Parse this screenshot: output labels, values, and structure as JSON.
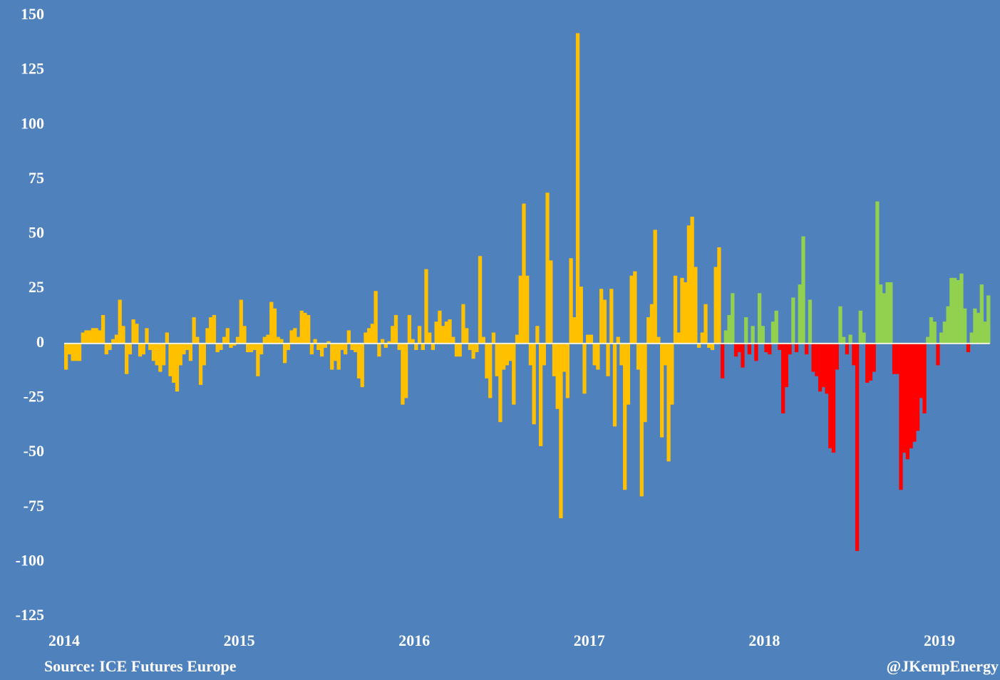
{
  "chart_data": {
    "type": "bar",
    "source": "Source: ICE Futures Europe",
    "credit": "@JKempEnergy",
    "categories": [
      "2014",
      null,
      null,
      null,
      null,
      null,
      null,
      null,
      null,
      null,
      null,
      null,
      null,
      null,
      null,
      null,
      null,
      null,
      null,
      null,
      null,
      null,
      null,
      null,
      null,
      null,
      null,
      null,
      null,
      null,
      null,
      null,
      null,
      null,
      null,
      null,
      null,
      null,
      null,
      null,
      null,
      null,
      null,
      null,
      null,
      null,
      null,
      null,
      null,
      null,
      null,
      null,
      "2015",
      null,
      null,
      null,
      null,
      null,
      null,
      null,
      null,
      null,
      null,
      null,
      null,
      null,
      null,
      null,
      null,
      null,
      null,
      null,
      null,
      null,
      null,
      null,
      null,
      null,
      null,
      null,
      null,
      null,
      null,
      null,
      null,
      null,
      null,
      null,
      null,
      null,
      null,
      null,
      null,
      null,
      null,
      null,
      null,
      null,
      null,
      null,
      null,
      null,
      null,
      null,
      "2016",
      null,
      null,
      null,
      null,
      null,
      null,
      null,
      null,
      null,
      null,
      null,
      null,
      null,
      null,
      null,
      null,
      null,
      null,
      null,
      null,
      null,
      null,
      null,
      null,
      null,
      null,
      null,
      null,
      null,
      null,
      null,
      null,
      null,
      null,
      null,
      null,
      null,
      null,
      null,
      null,
      null,
      null,
      null,
      null,
      null,
      null,
      null,
      null,
      null,
      null,
      null,
      "2017",
      null,
      null,
      null,
      null,
      null,
      null,
      null,
      null,
      null,
      null,
      null,
      null,
      null,
      null,
      null,
      null,
      null,
      null,
      null,
      null,
      null,
      null,
      null,
      null,
      null,
      null,
      null,
      null,
      null,
      null,
      null,
      null,
      null,
      null,
      null,
      null,
      null,
      null,
      null,
      null,
      null,
      null,
      null,
      null,
      null,
      null,
      null,
      null,
      null,
      null,
      null,
      "2018",
      null,
      null,
      null,
      null,
      null,
      null,
      null,
      null,
      null,
      null,
      null,
      null,
      null,
      null,
      null,
      null,
      null,
      null,
      null,
      null,
      null,
      null,
      null,
      null,
      null,
      null,
      null,
      null,
      null,
      null,
      null,
      null,
      null,
      null,
      null,
      null,
      null,
      null,
      null,
      null,
      null,
      null,
      null,
      null,
      null,
      null,
      null,
      null,
      null,
      null,
      null,
      "2019",
      null,
      null,
      null,
      null,
      null,
      null,
      null,
      null,
      null,
      null,
      null,
      null,
      null,
      null
    ],
    "series": [
      {
        "color": "#FFC000",
        "values": [
          -12,
          -5,
          -8,
          -8,
          -8,
          5,
          6,
          6,
          7,
          7,
          6,
          13,
          -5,
          -3,
          2,
          4,
          20,
          8,
          -14,
          -5,
          11,
          9,
          -6,
          -5,
          7,
          -3,
          -8,
          -10,
          -13,
          -10,
          5,
          -15,
          -18,
          -22,
          -10,
          -5,
          -3,
          -8,
          12,
          3,
          -19,
          -10,
          7,
          12,
          13,
          -4,
          -3,
          3,
          7,
          -2,
          -1,
          3,
          20,
          8,
          -4,
          -4,
          -3,
          -15,
          -5,
          3,
          4,
          19,
          16,
          3,
          2,
          -9,
          -3,
          6,
          7,
          3,
          15,
          14,
          13,
          -5,
          2,
          -3,
          -6,
          -2,
          1,
          -12,
          -8,
          -12,
          -3,
          -5,
          6,
          -3,
          -4,
          -16,
          -20,
          5,
          7,
          9,
          24,
          -6,
          2,
          -2,
          1,
          8,
          13,
          -3,
          -28,
          -25,
          13,
          2,
          -3,
          8,
          -3,
          34,
          5,
          -3,
          10,
          15,
          8,
          10,
          11,
          3,
          -6,
          -6,
          18,
          7,
          -3,
          -7,
          -4,
          40,
          3,
          -16,
          -25,
          5,
          -15,
          -36,
          -12,
          -10,
          -8,
          -28,
          4,
          31,
          64,
          31,
          -10,
          -37,
          8,
          -47,
          -10,
          69,
          38,
          -15,
          -30,
          -80,
          -13,
          -25,
          39,
          12,
          142,
          26,
          -23,
          4,
          4,
          -10,
          -12,
          25,
          20,
          -15,
          25,
          -38,
          3,
          -10,
          -67,
          -28,
          31,
          33,
          -12,
          -70,
          -36,
          12,
          18,
          52,
          3,
          -43,
          -10,
          -54,
          -28,
          31,
          5,
          30,
          28,
          54,
          58,
          35,
          -2,
          5,
          18,
          -2,
          -3,
          35,
          44,
          null,
          null,
          null,
          null,
          null,
          null,
          null,
          null,
          null,
          null,
          null,
          null,
          null,
          null,
          null,
          null,
          null,
          null,
          null,
          null,
          null,
          null,
          null,
          null,
          null,
          null,
          null,
          null,
          null,
          null,
          null,
          null,
          null,
          null,
          null,
          null,
          null,
          null,
          null,
          null,
          null,
          null,
          null,
          null,
          null,
          null,
          null,
          null,
          null,
          null,
          null,
          null,
          null,
          null,
          null,
          null,
          null,
          null,
          null,
          null,
          null,
          null,
          null,
          null,
          null,
          null,
          null,
          null,
          null,
          null,
          null,
          null,
          null,
          null,
          null,
          null,
          null,
          null,
          null,
          null
        ]
      },
      {
        "color": "#92D050",
        "negative_color": "#FF0000",
        "values": [
          null,
          null,
          null,
          null,
          null,
          null,
          null,
          null,
          null,
          null,
          null,
          null,
          null,
          null,
          null,
          null,
          null,
          null,
          null,
          null,
          null,
          null,
          null,
          null,
          null,
          null,
          null,
          null,
          null,
          null,
          null,
          null,
          null,
          null,
          null,
          null,
          null,
          null,
          null,
          null,
          null,
          null,
          null,
          null,
          null,
          null,
          null,
          null,
          null,
          null,
          null,
          null,
          null,
          null,
          null,
          null,
          null,
          null,
          null,
          null,
          null,
          null,
          null,
          null,
          null,
          null,
          null,
          null,
          null,
          null,
          null,
          null,
          null,
          null,
          null,
          null,
          null,
          null,
          null,
          null,
          null,
          null,
          null,
          null,
          null,
          null,
          null,
          null,
          null,
          null,
          null,
          null,
          null,
          null,
          null,
          null,
          null,
          null,
          null,
          null,
          null,
          null,
          null,
          null,
          null,
          null,
          null,
          null,
          null,
          null,
          null,
          null,
          null,
          null,
          null,
          null,
          null,
          null,
          null,
          null,
          null,
          null,
          null,
          null,
          null,
          null,
          null,
          null,
          null,
          null,
          null,
          null,
          null,
          null,
          null,
          null,
          null,
          null,
          null,
          null,
          null,
          null,
          null,
          null,
          null,
          null,
          null,
          null,
          null,
          null,
          null,
          null,
          null,
          null,
          null,
          null,
          null,
          null,
          null,
          null,
          null,
          null,
          null,
          null,
          null,
          null,
          null,
          null,
          null,
          null,
          null,
          null,
          null,
          null,
          null,
          null,
          null,
          null,
          null,
          null,
          null,
          null,
          null,
          null,
          null,
          null,
          null,
          null,
          null,
          null,
          null,
          null,
          null,
          null,
          null,
          -16,
          6,
          13,
          23,
          -6,
          -4,
          -11,
          12,
          -5,
          8,
          -8,
          23,
          8,
          -4,
          -5,
          10,
          15,
          -3,
          -32,
          -20,
          -5,
          21,
          -4,
          27,
          49,
          -5,
          20,
          -13,
          -15,
          -22,
          -20,
          -23,
          -48,
          -50,
          -12,
          17,
          3,
          -5,
          4,
          -10,
          -95,
          15,
          5,
          -18,
          -17,
          -13,
          65,
          27,
          23,
          28,
          28,
          -14,
          -14,
          -67,
          -50,
          -53,
          -48,
          -45,
          -40,
          -25,
          -32,
          3,
          12,
          10,
          -10,
          5,
          10,
          17,
          30,
          30,
          29,
          32,
          16,
          -4,
          5,
          16,
          14,
          27,
          10,
          22
        ]
      }
    ],
    "ylim": [
      -125,
      150
    ],
    "yticks": [
      150,
      125,
      100,
      75,
      50,
      25,
      0,
      -25,
      -50,
      -75,
      -100,
      -125
    ],
    "grid": false
  }
}
